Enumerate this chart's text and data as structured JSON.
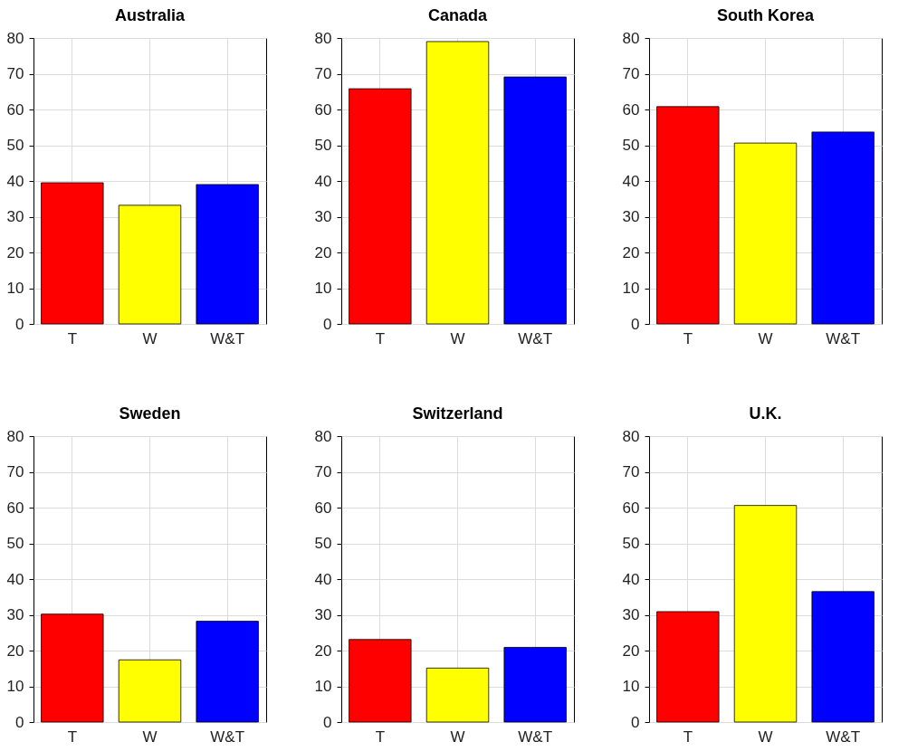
{
  "chart_data": [
    {
      "type": "bar",
      "title": "Australia",
      "categories": [
        "T",
        "W",
        "W&T"
      ],
      "values": [
        39.5,
        33.2,
        39.0
      ],
      "colors": [
        "#ff0000",
        "#ffff00",
        "#0000ff"
      ],
      "ylim": [
        0,
        80
      ],
      "yticks": [
        0,
        10,
        20,
        30,
        40,
        50,
        60,
        70,
        80
      ],
      "grid": true
    },
    {
      "type": "bar",
      "title": "Canada",
      "categories": [
        "T",
        "W",
        "W&T"
      ],
      "values": [
        65.8,
        79.0,
        69.1
      ],
      "colors": [
        "#ff0000",
        "#ffff00",
        "#0000ff"
      ],
      "ylim": [
        0,
        80
      ],
      "yticks": [
        0,
        10,
        20,
        30,
        40,
        50,
        60,
        70,
        80
      ],
      "grid": true
    },
    {
      "type": "bar",
      "title": "South Korea",
      "categories": [
        "T",
        "W",
        "W&T"
      ],
      "values": [
        60.8,
        50.6,
        53.7
      ],
      "colors": [
        "#ff0000",
        "#ffff00",
        "#0000ff"
      ],
      "ylim": [
        0,
        80
      ],
      "yticks": [
        0,
        10,
        20,
        30,
        40,
        50,
        60,
        70,
        80
      ],
      "grid": true
    },
    {
      "type": "bar",
      "title": "Sweden",
      "categories": [
        "T",
        "W",
        "W&T"
      ],
      "values": [
        30.2,
        17.4,
        28.2
      ],
      "colors": [
        "#ff0000",
        "#ffff00",
        "#0000ff"
      ],
      "ylim": [
        0,
        80
      ],
      "yticks": [
        0,
        10,
        20,
        30,
        40,
        50,
        60,
        70,
        80
      ],
      "grid": true
    },
    {
      "type": "bar",
      "title": "Switzerland",
      "categories": [
        "T",
        "W",
        "W&T"
      ],
      "values": [
        23.1,
        15.1,
        20.9
      ],
      "colors": [
        "#ff0000",
        "#ffff00",
        "#0000ff"
      ],
      "ylim": [
        0,
        80
      ],
      "yticks": [
        0,
        10,
        20,
        30,
        40,
        50,
        60,
        70,
        80
      ],
      "grid": true
    },
    {
      "type": "bar",
      "title": "U.K.",
      "categories": [
        "T",
        "W",
        "W&T"
      ],
      "values": [
        30.9,
        60.6,
        36.5
      ],
      "colors": [
        "#ff0000",
        "#ffff00",
        "#0000ff"
      ],
      "ylim": [
        0,
        80
      ],
      "yticks": [
        0,
        10,
        20,
        30,
        40,
        50,
        60,
        70,
        80
      ],
      "grid": true
    }
  ]
}
